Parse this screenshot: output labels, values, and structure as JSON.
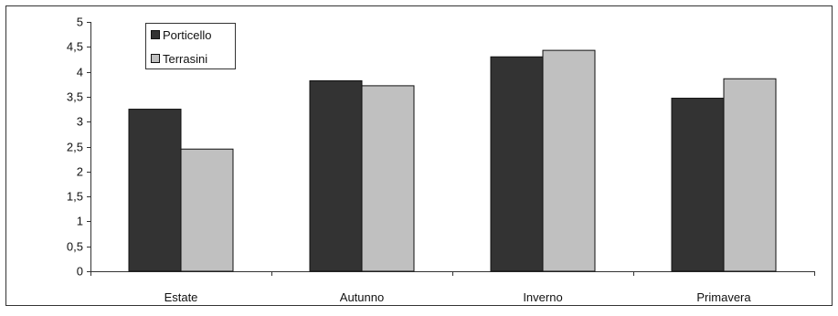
{
  "chart_data": {
    "type": "bar",
    "categories": [
      "Estate",
      "Autunno",
      "Inverno",
      "Primavera"
    ],
    "series": [
      {
        "name": "Porticello",
        "values": [
          3.25,
          3.82,
          4.3,
          3.47
        ],
        "color": "#333333"
      },
      {
        "name": "Terrasini",
        "values": [
          2.45,
          3.72,
          4.43,
          3.86
        ],
        "color": "#c0c0c0"
      }
    ],
    "yticks": [
      "0",
      "0,5",
      "1",
      "1,5",
      "2",
      "2,5",
      "3",
      "3,5",
      "4",
      "4,5",
      "5"
    ],
    "ylim": [
      0,
      5
    ],
    "title": "",
    "xlabel": "",
    "ylabel": "",
    "grid": false,
    "legend_position": "top-left"
  }
}
